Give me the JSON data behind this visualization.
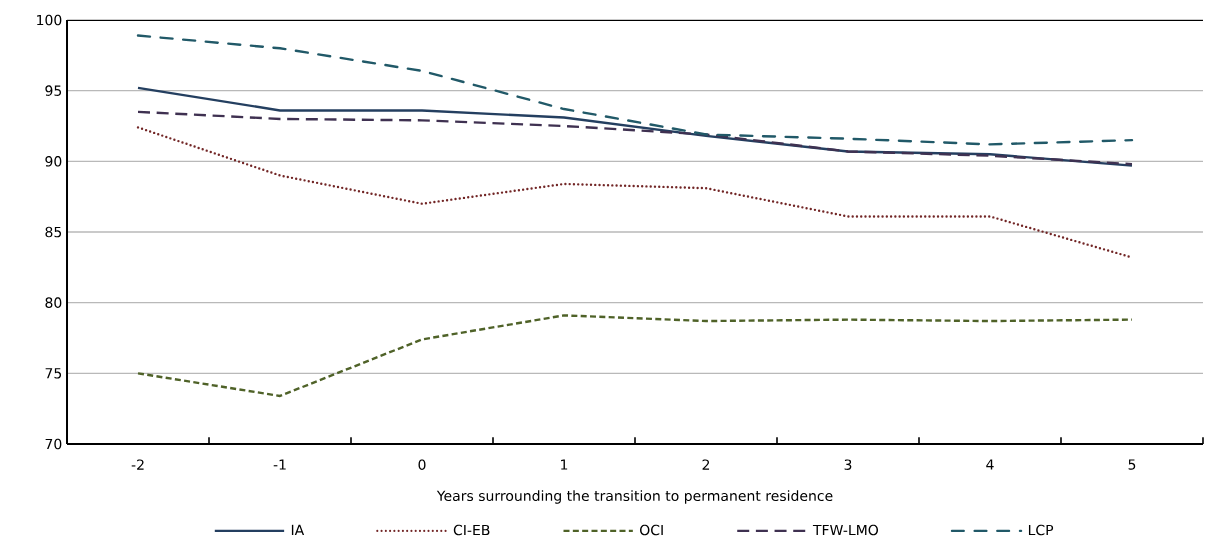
{
  "chart_data": {
    "type": "line",
    "xlabel": "Years surrounding the transition to permanent residence",
    "categories": [
      "-2",
      "-1",
      "0",
      "1",
      "2",
      "3",
      "4",
      "5"
    ],
    "ylim": [
      70,
      100
    ],
    "yticks": [
      70,
      75,
      80,
      85,
      90,
      95,
      100
    ],
    "grid": "y",
    "legend": "bottom",
    "series": [
      {
        "name": "IA",
        "color": "#243f60",
        "line_style": "solid",
        "values": [
          95.2,
          93.6,
          93.6,
          93.1,
          91.8,
          90.7,
          90.5,
          89.7
        ]
      },
      {
        "name": "CI-EB",
        "color": "#722626",
        "line_style": "dotted",
        "values": [
          92.4,
          89.0,
          87.0,
          88.4,
          88.1,
          86.1,
          86.1,
          83.2
        ]
      },
      {
        "name": "OCI",
        "color": "#4f6228",
        "line_style": "dashed",
        "values": [
          75.0,
          73.4,
          77.4,
          79.1,
          78.7,
          78.8,
          78.7,
          78.8
        ]
      },
      {
        "name": "TFW-LMO",
        "color": "#3f3151",
        "line_style": "long dashed",
        "values": [
          93.5,
          93.0,
          92.9,
          92.5,
          91.9,
          90.7,
          90.4,
          89.8
        ]
      },
      {
        "name": "LCP",
        "color": "#215968",
        "line_style": "dashdot",
        "values": [
          98.9,
          98.0,
          96.4,
          93.7,
          91.9,
          91.6,
          91.2,
          91.5
        ]
      }
    ]
  }
}
